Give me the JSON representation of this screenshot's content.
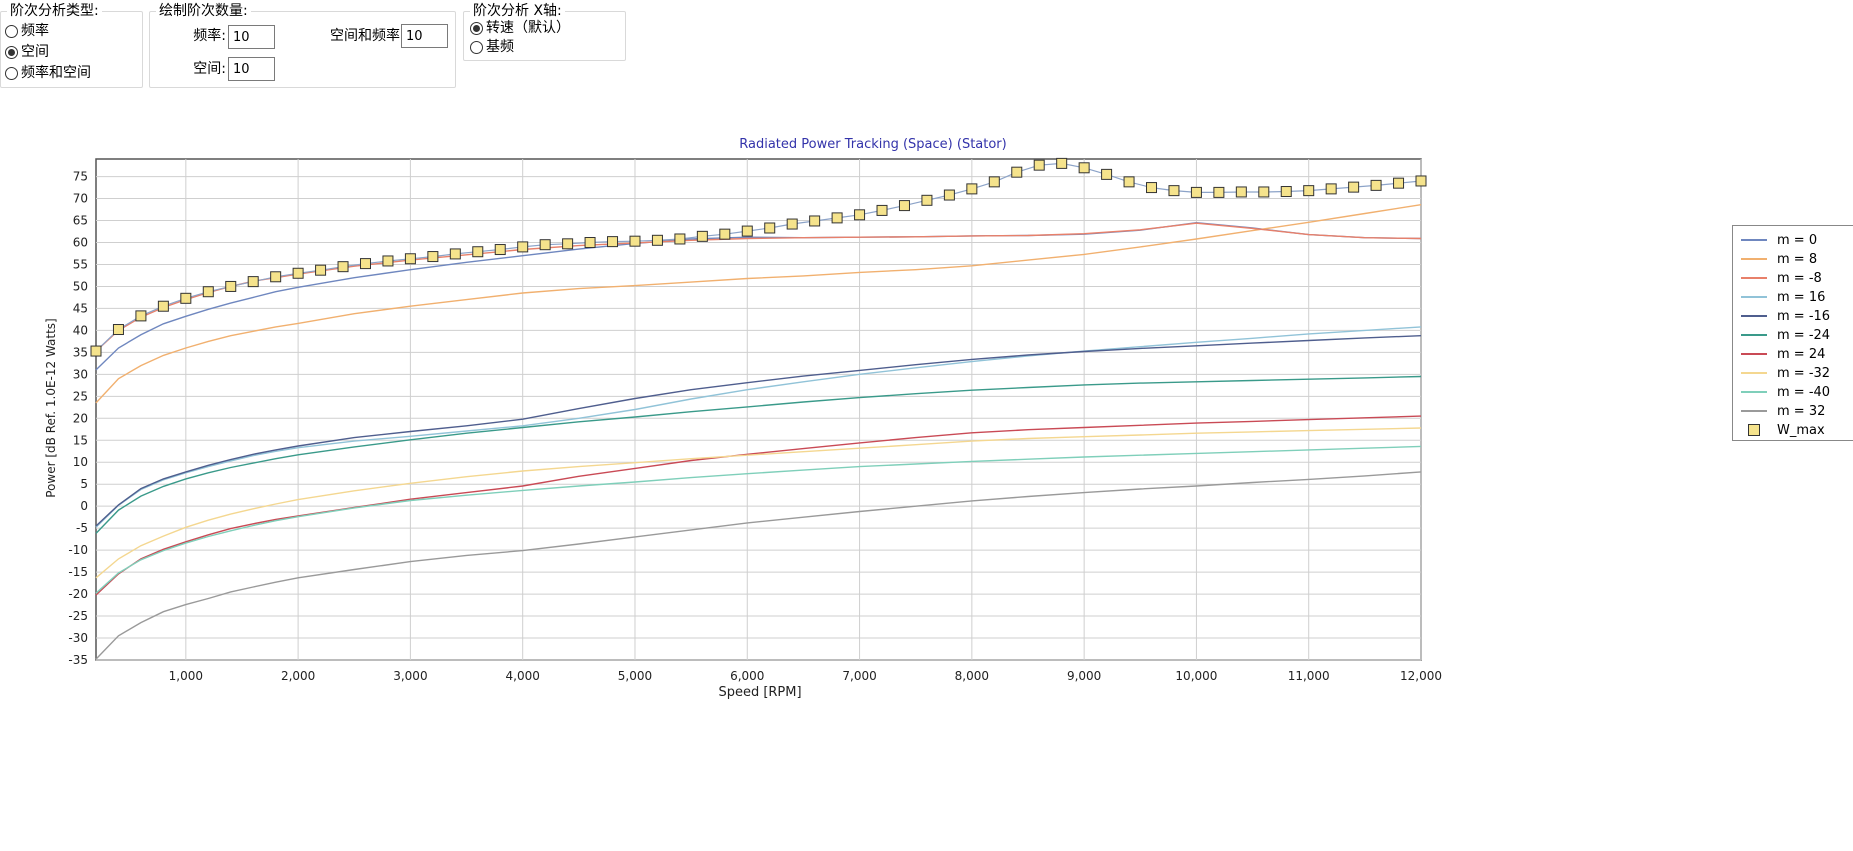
{
  "panels": {
    "analysis_type": {
      "title": "阶次分析类型:",
      "options": [
        "频率",
        "空间",
        "频率和空间"
      ],
      "selected": 1
    },
    "order_count": {
      "title": "绘制阶次数量:",
      "freq_label": "频率:",
      "freq_value": "10",
      "space_label": "空间:",
      "space_value": "10",
      "both_label": "空间和频率",
      "both_value": "10"
    },
    "x_axis": {
      "title": "阶次分析 X轴:",
      "options": [
        "转速（默认）",
        "基频"
      ],
      "selected": 0
    }
  },
  "chart_data": {
    "type": "line",
    "title": "Radiated Power Tracking (Space) (Stator)",
    "xlabel": "Speed [RPM]",
    "ylabel": "Power [dB Ref. 1.0E-12 Watts]",
    "xlim": [
      200,
      12000
    ],
    "ylim": [
      -35,
      79
    ],
    "xticks": [
      1000,
      2000,
      3000,
      4000,
      5000,
      6000,
      7000,
      8000,
      9000,
      10000,
      11000,
      12000
    ],
    "xtick_labels": [
      "1,000",
      "2,000",
      "3,000",
      "4,000",
      "5,000",
      "6,000",
      "7,000",
      "8,000",
      "9,000",
      "10,000",
      "11,000",
      "12,000"
    ],
    "yticks": [
      75,
      70,
      65,
      60,
      55,
      50,
      45,
      40,
      35,
      30,
      25,
      20,
      15,
      10,
      5,
      0,
      -5,
      -10,
      -15,
      -20,
      -25,
      -30,
      -35
    ],
    "grid": true,
    "legend_position": "right",
    "x": [
      200,
      400,
      600,
      800,
      1000,
      1200,
      1400,
      1600,
      1800,
      2000,
      2500,
      3000,
      3500,
      4000,
      4500,
      5000,
      5500,
      6000,
      6500,
      7000,
      7500,
      8000,
      8500,
      9000,
      9500,
      10000,
      10500,
      11000,
      11500,
      12000
    ],
    "series": [
      {
        "name": "m = 0",
        "color": "#6f87bf",
        "values": [
          31,
          36,
          39,
          41.5,
          43.2,
          44.8,
          46.2,
          47.5,
          48.8,
          49.8,
          52,
          53.8,
          55.5,
          57,
          58.5,
          59.8,
          60.8,
          61.2,
          61.1,
          61.2,
          61.3,
          61.5,
          61.6,
          61.9,
          62.8,
          64.5,
          63.3,
          61.8,
          61.1,
          60.9
        ]
      },
      {
        "name": "m = 8",
        "color": "#f1b06f",
        "values": [
          23.5,
          29,
          32,
          34.3,
          36.0,
          37.5,
          38.8,
          39.8,
          40.8,
          41.6,
          43.8,
          45.5,
          47.0,
          48.5,
          49.5,
          50.2,
          51.0,
          51.8,
          52.4,
          53.2,
          53.8,
          54.7,
          56,
          57.3,
          59,
          60.8,
          62.7,
          64.6,
          66.6,
          68.6
        ]
      },
      {
        "name": "m = -8",
        "color": "#e8806a",
        "values": [
          35.3,
          40,
          43,
          45.2,
          47.0,
          48.6,
          50.0,
          51.2,
          52.0,
          52.8,
          54.6,
          56.0,
          57.2,
          58.4,
          59.3,
          59.9,
          60.5,
          60.9,
          61.1,
          61.2,
          61.3,
          61.5,
          61.6,
          62.0,
          62.9,
          64.4,
          63.2,
          61.8,
          61.1,
          60.9
        ]
      },
      {
        "name": "m = 16",
        "color": "#91c3d8",
        "values": [
          -4.8,
          0.2,
          3.8,
          6.0,
          7.6,
          9.0,
          10.3,
          11.5,
          12.5,
          13.3,
          14.8,
          15.9,
          17.1,
          18.3,
          20.0,
          22.0,
          24.4,
          26.5,
          28.3,
          30.0,
          31.5,
          32.9,
          34.2,
          35.3,
          36.3,
          37.3,
          38.2,
          39.2,
          40.0,
          40.8
        ]
      },
      {
        "name": "m = -16",
        "color": "#4f5e8e",
        "values": [
          -4.5,
          0.3,
          4.0,
          6.2,
          7.8,
          9.3,
          10.6,
          11.8,
          12.8,
          13.7,
          15.6,
          17.0,
          18.3,
          19.8,
          22.2,
          24.5,
          26.5,
          28.1,
          29.6,
          30.9,
          32.2,
          33.4,
          34.4,
          35.2,
          35.9,
          36.5,
          37.1,
          37.7,
          38.3,
          38.8
        ]
      },
      {
        "name": "m = -24",
        "color": "#3a9a8a",
        "values": [
          -6.2,
          -0.9,
          2.3,
          4.5,
          6.2,
          7.6,
          8.8,
          9.8,
          10.8,
          11.7,
          13.5,
          15.1,
          16.6,
          17.9,
          19.2,
          20.3,
          21.5,
          22.6,
          23.7,
          24.7,
          25.6,
          26.4,
          27.0,
          27.6,
          28.0,
          28.3,
          28.6,
          28.9,
          29.2,
          29.5
        ]
      },
      {
        "name": "m = 24",
        "color": "#c94a55",
        "values": [
          -20.2,
          -15.4,
          -12.0,
          -9.8,
          -8.1,
          -6.5,
          -5.1,
          -4.0,
          -3.0,
          -2.2,
          -0.3,
          1.6,
          3.1,
          4.6,
          6.8,
          8.6,
          10.4,
          11.8,
          13.1,
          14.4,
          15.6,
          16.7,
          17.4,
          17.9,
          18.4,
          18.9,
          19.3,
          19.7,
          20.1,
          20.5
        ]
      },
      {
        "name": "m = -32",
        "color": "#f4d790",
        "values": [
          -16.3,
          -12.0,
          -9.0,
          -6.8,
          -4.8,
          -3.2,
          -1.8,
          -0.6,
          0.5,
          1.5,
          3.5,
          5.2,
          6.7,
          8.0,
          9.0,
          9.9,
          10.8,
          11.6,
          12.4,
          13.2,
          14.0,
          14.8,
          15.4,
          15.8,
          16.2,
          16.6,
          16.9,
          17.2,
          17.5,
          17.8
        ]
      },
      {
        "name": "m = -40",
        "color": "#7fcfba",
        "values": [
          -19.8,
          -15.2,
          -12.2,
          -10.1,
          -8.4,
          -6.9,
          -5.6,
          -4.4,
          -3.3,
          -2.4,
          -0.4,
          1.3,
          2.5,
          3.6,
          4.6,
          5.5,
          6.5,
          7.4,
          8.2,
          9.0,
          9.6,
          10.2,
          10.7,
          11.2,
          11.6,
          12.0,
          12.4,
          12.8,
          13.2,
          13.6
        ]
      },
      {
        "name": "m = 32",
        "color": "#9a9a9a",
        "values": [
          -34.8,
          -29.5,
          -26.5,
          -24.0,
          -22.4,
          -21.0,
          -19.5,
          -18.4,
          -17.3,
          -16.3,
          -14.4,
          -12.6,
          -11.2,
          -10.1,
          -8.6,
          -7.0,
          -5.4,
          -3.8,
          -2.5,
          -1.2,
          0.0,
          1.2,
          2.2,
          3.1,
          3.9,
          4.6,
          5.4,
          6.1,
          6.9,
          7.8
        ]
      }
    ],
    "w_max": {
      "name": "W_max",
      "color": "#f5e38c",
      "line_color": "#8ca3c8",
      "x": [
        200,
        400,
        600,
        800,
        1000,
        1200,
        1400,
        1600,
        1800,
        2000,
        2200,
        2400,
        2600,
        2800,
        3000,
        3200,
        3400,
        3600,
        3800,
        4000,
        4200,
        4400,
        4600,
        4800,
        5000,
        5200,
        5400,
        5600,
        5800,
        6000,
        6200,
        6400,
        6600,
        6800,
        7000,
        7200,
        7400,
        7600,
        7800,
        8000,
        8200,
        8400,
        8600,
        8800,
        9000,
        9200,
        9400,
        9600,
        9800,
        10000,
        10200,
        10400,
        10600,
        10800,
        11000,
        11200,
        11400,
        11600,
        11800,
        12000
      ],
      "values": [
        35.3,
        40.2,
        43.3,
        45.5,
        47.3,
        48.8,
        50.0,
        51.1,
        52.2,
        53.0,
        53.7,
        54.5,
        55.2,
        55.8,
        56.3,
        56.8,
        57.4,
        57.9,
        58.4,
        59.0,
        59.5,
        59.7,
        60.0,
        60.2,
        60.3,
        60.5,
        60.8,
        61.4,
        61.9,
        62.6,
        63.3,
        64.2,
        64.9,
        65.6,
        66.3,
        67.3,
        68.4,
        69.6,
        70.8,
        72.2,
        73.8,
        76.0,
        77.6,
        78.0,
        77.0,
        75.5,
        73.8,
        72.5,
        71.8,
        71.4,
        71.4,
        71.5,
        71.5,
        71.6,
        71.8,
        72.2,
        72.6,
        73.0,
        73.5,
        74.0
      ]
    }
  }
}
